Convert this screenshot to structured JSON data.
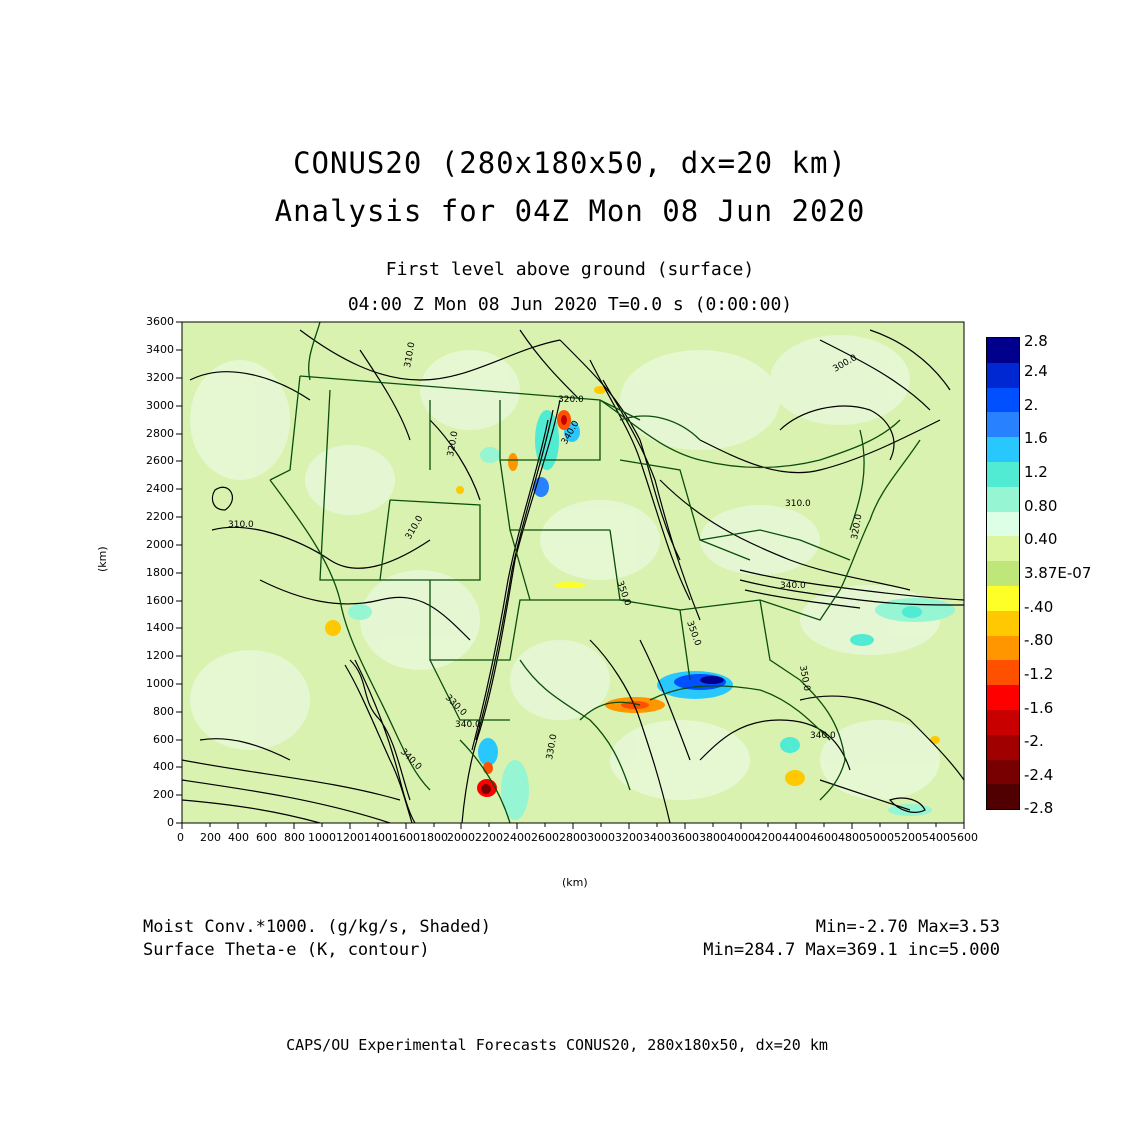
{
  "title": {
    "line1": "CONUS20 (280x180x50, dx=20 km)",
    "line2": "Analysis for 04Z Mon 08 Jun 2020"
  },
  "subtitle": {
    "level": "First level above ground (surface)",
    "time": "04:00 Z Mon 08 Jun 2020    T=0.0 s (0:00:00)"
  },
  "axes": {
    "x_label": "(km)",
    "y_label": "(km)",
    "x_ticks": [
      "0",
      "200",
      "400",
      "600",
      "800",
      "1000",
      "1200",
      "1400",
      "1600",
      "1800",
      "2000",
      "2200",
      "2400",
      "2600",
      "2800",
      "3000",
      "3200",
      "3400",
      "3600",
      "3800",
      "4000",
      "4200",
      "4400",
      "4600",
      "4800",
      "5000",
      "5200",
      "5400",
      "5600"
    ],
    "y_ticks": [
      "0",
      "200",
      "400",
      "600",
      "800",
      "1000",
      "1200",
      "1400",
      "1600",
      "1800",
      "2000",
      "2200",
      "2400",
      "2600",
      "2800",
      "3000",
      "3200",
      "3400",
      "3600"
    ],
    "x_range": [
      0,
      5600
    ],
    "y_range": [
      0,
      3600
    ]
  },
  "colorbar": {
    "labels": [
      "2.8",
      "2.4",
      "2.",
      "1.6",
      "1.2",
      "0.80",
      "0.40",
      "3.87E-07",
      "-.40",
      "-.80",
      "-1.2",
      "-1.6",
      "-2.",
      "-2.4",
      "-2.8"
    ],
    "colors": [
      "#00008c",
      "#0028d2",
      "#0050ff",
      "#2882ff",
      "#28c8ff",
      "#50ebd2",
      "#96f5d2",
      "#dcffe6",
      "#dcf5a0",
      "#bee678",
      "#ffff28",
      "#ffc800",
      "#ff9600",
      "#ff5000",
      "#ff0000",
      "#c80000",
      "#a00000",
      "#780000",
      "#500000"
    ]
  },
  "contour_labels": [
    "310.0",
    "300.0",
    "320.0",
    "310.0",
    "310.0",
    "320.0",
    "310.0",
    "340.0",
    "330.0",
    "340.0",
    "350.0",
    "350.0",
    "340.0",
    "330.0",
    "340.0",
    "350.0",
    "340.0",
    "320.0"
  ],
  "info": {
    "shaded_field": "Moist Conv.*1000. (g/kg/s, Shaded)",
    "shaded_range": "Min=-2.70 Max=3.53",
    "contour_field": "Surface Theta-e (K, contour)",
    "contour_range": "Min=284.7 Max=369.1 inc=5.000"
  },
  "footer": "CAPS/OU Experimental Forecasts  CONUS20, 280x180x50, dx=20 km"
}
